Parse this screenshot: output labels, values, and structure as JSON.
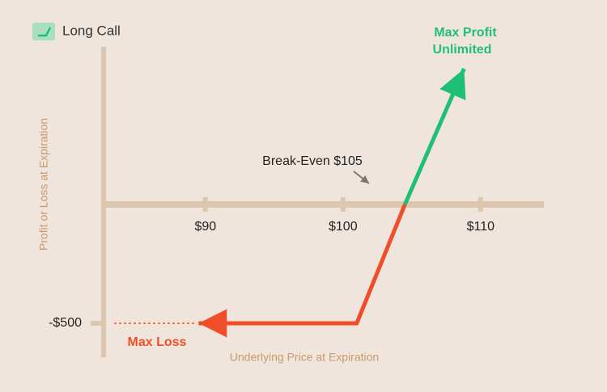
{
  "chart_data": {
    "type": "line",
    "legend": "Long Call",
    "xlabel": "Underlying Price at Expiration",
    "ylabel": "Profit or Loss at Expiration",
    "annotations": {
      "max_profit": [
        "Max Profit",
        "Unlimited"
      ],
      "break_even": "Break-Even $105",
      "max_loss": "Max Loss"
    },
    "series": [
      {
        "color": "#f04e28",
        "x": [
          89.5,
          101,
          104.5
        ],
        "values": [
          -500,
          -500,
          0
        ]
      },
      {
        "color": "#1fbf76",
        "x": [
          104.5,
          108.8
        ],
        "values": [
          0,
          571
        ]
      }
    ],
    "xlim": [
      82.6,
      114.6
    ],
    "ylim": [
      -643,
      663
    ],
    "xticks": [
      {
        "value": 90,
        "label": "$90"
      },
      {
        "value": 100,
        "label": "$100"
      },
      {
        "value": 110,
        "label": "$110"
      }
    ],
    "yticks": [
      {
        "value": -500,
        "label": "-$500"
      }
    ]
  }
}
